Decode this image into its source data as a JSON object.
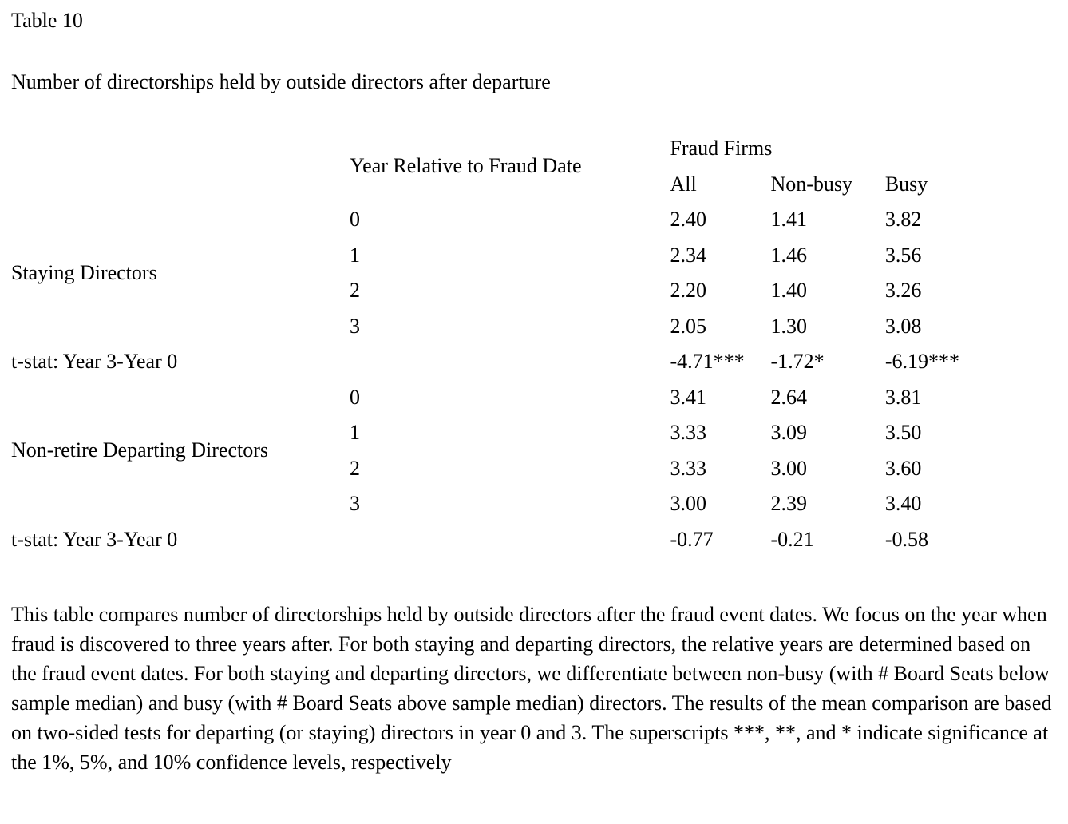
{
  "page": {
    "table_label": "Table 10",
    "caption": "Number of directorships held by outside directors after departure"
  },
  "table": {
    "header": {
      "year_col": "Year Relative to Fraud Date",
      "group": "Fraud Firms",
      "columns": [
        "All",
        "Non-busy",
        "Busy"
      ]
    },
    "sections": [
      {
        "label": "Staying Directors",
        "rows": [
          {
            "year": "0",
            "all": "2.40",
            "nonbusy": "1.41",
            "busy": "3.82"
          },
          {
            "year": "1",
            "all": "2.34",
            "nonbusy": "1.46",
            "busy": "3.56"
          },
          {
            "year": "2",
            "all": "2.20",
            "nonbusy": "1.40",
            "busy": "3.26"
          },
          {
            "year": "3",
            "all": "2.05",
            "nonbusy": "1.30",
            "busy": "3.08"
          }
        ],
        "tstat": {
          "label": "t-stat: Year 3-Year 0",
          "all": "-4.71***",
          "nonbusy": "-1.72*",
          "busy": "-6.19***"
        }
      },
      {
        "label": "Non-retire Departing Directors",
        "rows": [
          {
            "year": "0",
            "all": "3.41",
            "nonbusy": "2.64",
            "busy": "3.81"
          },
          {
            "year": "1",
            "all": "3.33",
            "nonbusy": "3.09",
            "busy": "3.50"
          },
          {
            "year": "2",
            "all": "3.33",
            "nonbusy": "3.00",
            "busy": "3.60"
          },
          {
            "year": "3",
            "all": "3.00",
            "nonbusy": "2.39",
            "busy": "3.40"
          }
        ],
        "tstat": {
          "label": "t-stat: Year 3-Year 0",
          "all": "-0.77",
          "nonbusy": "-0.21",
          "busy": "-0.58"
        }
      }
    ]
  },
  "note": "This table compares number of directorships held by outside directors after the fraud event dates. We focus on the year when fraud is discovered to three years after. For both staying and departing directors, the relative years are determined based on the fraud event dates. For both staying and departing directors, we differentiate between non-busy (with # Board Seats below sample median) and busy (with # Board Seats above sample median) directors. The results of the mean comparison are based on two-sided tests for departing (or staying) directors in year 0 and 3. The superscripts ***, **, and * indicate significance at the 1%, 5%, and 10% confidence levels, respectively"
}
